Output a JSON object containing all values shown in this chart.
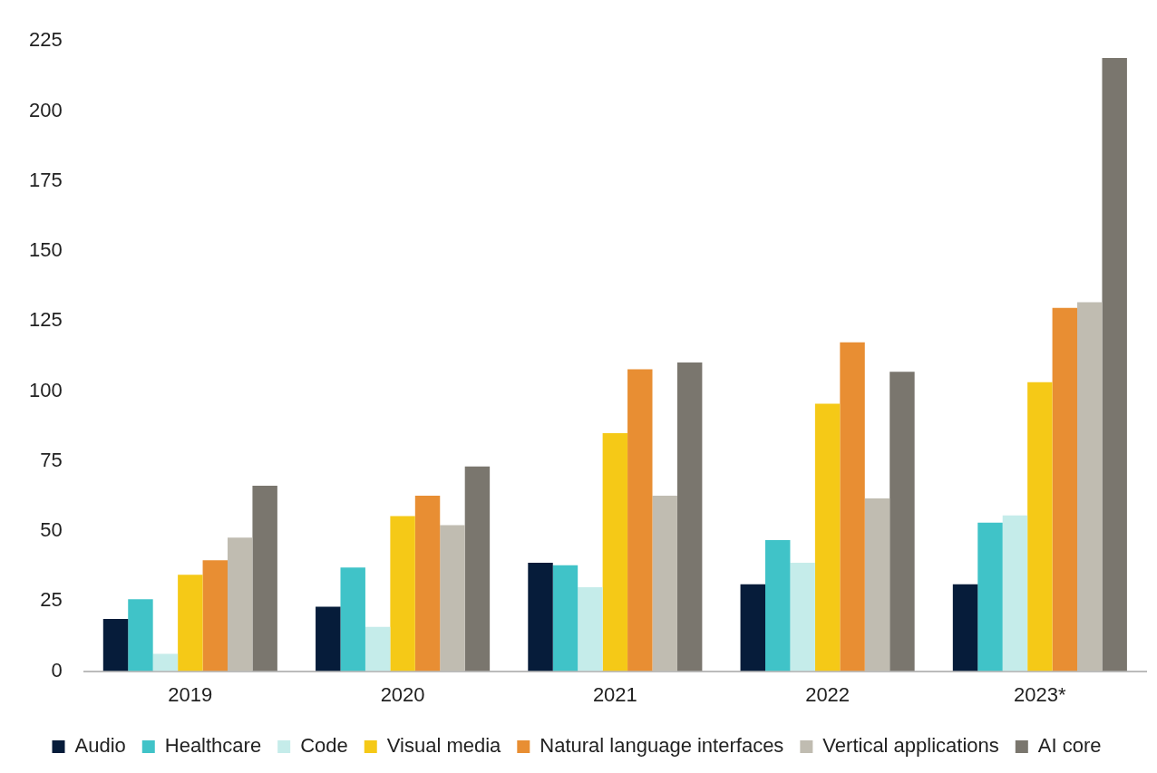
{
  "chart_data": {
    "type": "bar",
    "categories": [
      "2019",
      "2020",
      "2021",
      "2022",
      "2023*"
    ],
    "series": [
      {
        "name": "Audio",
        "color": "#061c3a",
        "values": [
          18.6,
          23,
          38.7,
          31,
          31
        ]
      },
      {
        "name": "Healthcare",
        "color": "#40c3c8",
        "values": [
          25.7,
          37,
          37.8,
          46.8,
          53
        ]
      },
      {
        "name": "Code",
        "color": "#c5ecea",
        "values": [
          6.2,
          15.8,
          30,
          38.7,
          55.6
        ]
      },
      {
        "name": "Visual media",
        "color": "#f5c917",
        "values": [
          34.4,
          55.4,
          85,
          95.5,
          103.2
        ]
      },
      {
        "name": "Natural language interfaces",
        "color": "#e88e33",
        "values": [
          39.6,
          62.6,
          107.8,
          117.4,
          129.7
        ]
      },
      {
        "name": "Vertical applications",
        "color": "#c0bcb1",
        "values": [
          47.7,
          52.1,
          62.6,
          61.7,
          131.7
        ]
      },
      {
        "name": "AI core",
        "color": "#7a766e",
        "values": [
          66.2,
          73.1,
          110.2,
          106.9,
          218.9
        ]
      }
    ],
    "ylim": [
      0,
      225
    ],
    "yticks": [
      0,
      25,
      50,
      75,
      100,
      125,
      150,
      175,
      200,
      225
    ],
    "grid": false,
    "legend": "bottom"
  }
}
